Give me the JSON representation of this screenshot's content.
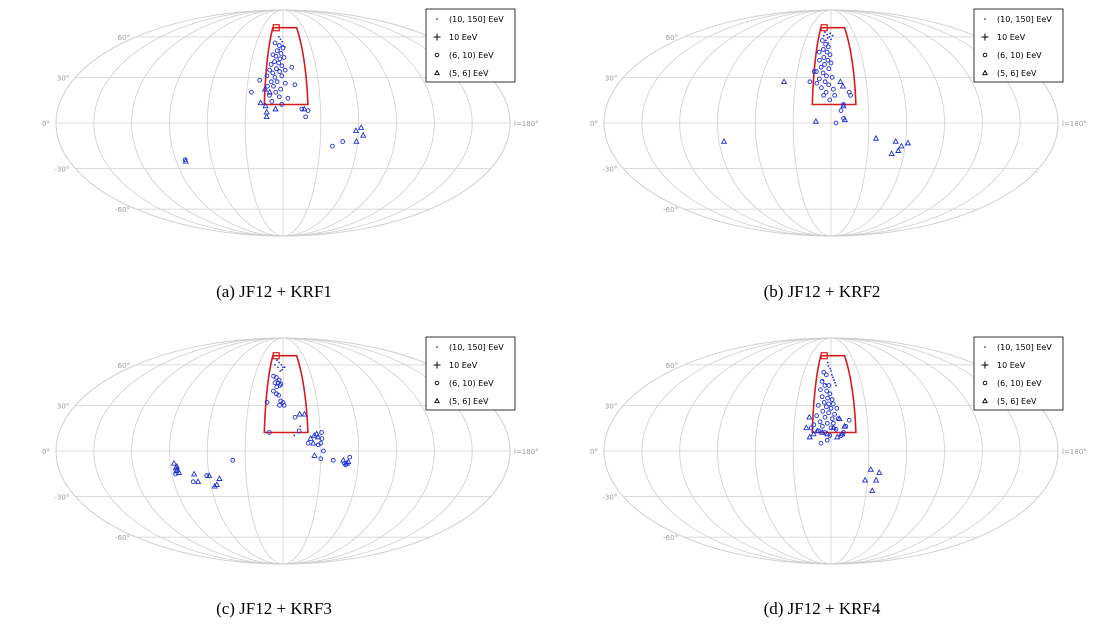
{
  "shared": {
    "lat_labels": [
      "60°",
      "30°",
      "0°",
      "-30°",
      "-60°"
    ],
    "lon_label": "l=180°",
    "legend": [
      {
        "label": "(10, 150] EeV",
        "marker": "dot"
      },
      {
        "label": "10 EeV",
        "marker": "plus"
      },
      {
        "label": "(6, 10) EeV",
        "marker": "circle"
      },
      {
        "label": "(5, 6] EeV",
        "marker": "triangle"
      }
    ],
    "colors": {
      "points": "#1f2fd6",
      "region": "#d81b1b",
      "grid": "#cfcfcf",
      "tick": "#9a9a9a"
    }
  },
  "chart_data": [
    {
      "type": "scatter",
      "projection": "mollweide",
      "caption": "(a) JF12 + KRF1",
      "source_marker": {
        "l": -10,
        "b": 68
      },
      "region": {
        "l_min": -15,
        "l_max": 20,
        "b_min": 12,
        "b_max": 68
      },
      "series": [
        {
          "marker": "dot",
          "points": [
            [
              -5,
              60
            ],
            [
              -3,
              58
            ],
            [
              -1,
              56
            ],
            [
              0,
              53
            ],
            [
              -4,
              50
            ],
            [
              2,
              52
            ]
          ]
        },
        {
          "marker": "circle",
          "points": [
            [
              -9,
              55
            ],
            [
              -4,
              53
            ],
            [
              0,
              51
            ],
            [
              -6,
              49
            ],
            [
              -2,
              47
            ],
            [
              -10,
              46
            ],
            [
              -7,
              45
            ],
            [
              -3,
              43
            ],
            [
              1,
              44
            ],
            [
              -8,
              41
            ],
            [
              -4,
              40
            ],
            [
              -11,
              39
            ],
            [
              -1,
              38
            ],
            [
              -6,
              36
            ],
            [
              -12,
              35
            ],
            [
              -9,
              33
            ],
            [
              -3,
              34
            ],
            [
              -14,
              31
            ],
            [
              -7,
              30
            ],
            [
              -1,
              31
            ],
            [
              -10,
              27
            ],
            [
              -5,
              27
            ],
            [
              2,
              26
            ],
            [
              -13,
              24
            ],
            [
              -8,
              24
            ],
            [
              -2,
              22
            ],
            [
              -6,
              20
            ],
            [
              -11,
              18
            ],
            [
              -3,
              17
            ],
            [
              4,
              16
            ],
            [
              -9,
              14
            ],
            [
              -1,
              12
            ],
            [
              2,
              35
            ],
            [
              8,
              37
            ],
            [
              10,
              25
            ],
            [
              -20,
              28
            ],
            [
              -26,
              20
            ],
            [
              15,
              9
            ],
            [
              20,
              8
            ],
            [
              18,
              4
            ],
            [
              40,
              -15
            ],
            [
              48,
              -12
            ],
            [
              -82,
              -24
            ]
          ]
        },
        {
          "marker": "triangle",
          "points": [
            [
              -18,
              13
            ],
            [
              -14,
              11
            ],
            [
              -13,
              7
            ],
            [
              -6,
              9
            ],
            [
              -15,
              22
            ],
            [
              -11,
              20
            ],
            [
              17,
              9
            ],
            [
              -13,
              4
            ],
            [
              58,
              -5
            ],
            [
              62,
              -3
            ],
            [
              64,
              -8
            ],
            [
              59,
              -12
            ],
            [
              -82,
              -25
            ]
          ]
        }
      ]
    },
    {
      "type": "scatter",
      "projection": "mollweide",
      "caption": "(b) JF12 + KRF2",
      "source_marker": {
        "l": -10,
        "b": 68
      },
      "region": {
        "l_min": -15,
        "l_max": 20,
        "b_min": 12,
        "b_max": 68
      },
      "series": [
        {
          "marker": "dot",
          "points": [
            [
              -8,
              64
            ],
            [
              -5,
              62
            ],
            [
              -2,
              60
            ],
            [
              0,
              58
            ],
            [
              -6,
              57
            ],
            [
              -3,
              55
            ],
            [
              -9,
              61
            ],
            [
              -1,
              63
            ],
            [
              2,
              61
            ],
            [
              -4,
              59
            ]
          ]
        },
        {
          "marker": "circle",
          "points": [
            [
              -10,
              57
            ],
            [
              -6,
              54
            ],
            [
              -3,
              52
            ],
            [
              -8,
              50
            ],
            [
              -12,
              48
            ],
            [
              -4,
              48
            ],
            [
              -1,
              46
            ],
            [
              -7,
              44
            ],
            [
              -11,
              42
            ],
            [
              -3,
              42
            ],
            [
              0,
              40
            ],
            [
              -6,
              39
            ],
            [
              -9,
              37
            ],
            [
              -2,
              36
            ],
            [
              -13,
              34
            ],
            [
              -7,
              33
            ],
            [
              -4,
              31
            ],
            [
              1,
              30
            ],
            [
              -10,
              29
            ],
            [
              -5,
              27
            ],
            [
              -12,
              26
            ],
            [
              -2,
              25
            ],
            [
              -8,
              23
            ],
            [
              2,
              22
            ],
            [
              -4,
              20
            ],
            [
              -6,
              18
            ],
            [
              3,
              18
            ],
            [
              -1,
              15
            ],
            [
              -15,
              34
            ],
            [
              -18,
              27
            ],
            [
              15,
              20
            ],
            [
              16,
              18
            ],
            [
              10,
              12
            ],
            [
              8,
              8
            ],
            [
              10,
              3
            ],
            [
              4,
              0
            ]
          ]
        },
        {
          "marker": "triangle",
          "points": [
            [
              8,
              27
            ],
            [
              10,
              24
            ],
            [
              -40,
              27
            ],
            [
              -12,
              1
            ],
            [
              11,
              2
            ],
            [
              10,
              11
            ],
            [
              -86,
              -12
            ],
            [
              36,
              -10
            ],
            [
              52,
              -12
            ],
            [
              57,
              -15
            ],
            [
              55,
              -18
            ],
            [
              50,
              -20
            ],
            [
              62,
              -13
            ]
          ]
        }
      ]
    },
    {
      "type": "scatter",
      "projection": "mollweide",
      "caption": "(c) JF12 + KRF3",
      "source_marker": {
        "l": -10,
        "b": 68
      },
      "region": {
        "l_min": -15,
        "l_max": 20,
        "b_min": 12,
        "b_max": 68
      },
      "series": [
        {
          "marker": "dot",
          "points": [
            [
              -8,
              64
            ],
            [
              -5,
              62
            ],
            [
              -2,
              60
            ],
            [
              0,
              58
            ],
            [
              -6,
              58
            ],
            [
              -3,
              55
            ],
            [
              -10,
              60
            ],
            [
              2,
              58
            ],
            [
              -1,
              56
            ],
            [
              14,
              16
            ],
            [
              9,
              10
            ]
          ]
        },
        {
          "marker": "circle",
          "points": [
            [
              -10,
              51
            ],
            [
              -7,
              50
            ],
            [
              -4,
              48
            ],
            [
              -8,
              46
            ],
            [
              -5,
              46
            ],
            [
              -2,
              45
            ],
            [
              -6,
              43
            ],
            [
              -3,
              44
            ],
            [
              -9,
              40
            ],
            [
              -6,
              38
            ],
            [
              -4,
              37
            ],
            [
              -2,
              33
            ],
            [
              0,
              32
            ],
            [
              -3,
              30
            ],
            [
              1,
              30
            ],
            [
              -14,
              32
            ],
            [
              -11,
              12
            ],
            [
              10,
              22
            ],
            [
              13,
              13
            ],
            [
              20,
              5
            ],
            [
              28,
              4
            ],
            [
              31,
              12
            ],
            [
              31,
              8
            ],
            [
              30,
              5
            ],
            [
              32,
              0
            ],
            [
              30,
              -5
            ],
            [
              40,
              -6
            ],
            [
              49,
              -8
            ],
            [
              50,
              -9
            ],
            [
              53,
              -4
            ],
            [
              -40,
              -6
            ],
            [
              -62,
              -16
            ],
            [
              -74,
              -20
            ],
            [
              -87,
              -15
            ]
          ]
        },
        {
          "marker": "triangle",
          "points": [
            [
              14,
              24
            ],
            [
              18,
              24
            ],
            [
              22,
              8
            ],
            [
              24,
              5
            ],
            [
              25,
              10
            ],
            [
              27,
              11
            ],
            [
              28,
              9
            ],
            [
              25,
              -3
            ],
            [
              48,
              -6
            ],
            [
              52,
              -7
            ],
            [
              51,
              -8
            ],
            [
              -87,
              -8
            ],
            [
              -86,
              -11
            ],
            [
              -85,
              -12
            ],
            [
              -84,
              -14
            ],
            [
              -86,
              -13
            ],
            [
              -85,
              -10
            ],
            [
              -72,
              -15
            ],
            [
              -70,
              -20
            ],
            [
              -60,
              -16
            ],
            [
              -52,
              -18
            ],
            [
              -55,
              -22
            ],
            [
              -57,
              -23
            ]
          ]
        }
      ]
    },
    {
      "type": "scatter",
      "projection": "mollweide",
      "caption": "(d) JF12 + KRF4",
      "source_marker": {
        "l": -10,
        "b": 68
      },
      "region": {
        "l_min": -15,
        "l_max": 20,
        "b_min": 12,
        "b_max": 68
      },
      "series": [
        {
          "marker": "dot",
          "points": [
            [
              -4,
              62
            ],
            [
              -3,
              59
            ],
            [
              -1,
              57
            ],
            [
              0,
              55
            ],
            [
              1,
              52
            ],
            [
              2,
              50
            ],
            [
              3,
              48
            ],
            [
              4,
              46
            ],
            [
              5,
              44
            ],
            [
              -8,
              48
            ],
            [
              -5,
              45
            ]
          ]
        },
        {
          "marker": "circle",
          "points": [
            [
              -8,
              54
            ],
            [
              -5,
              52
            ],
            [
              -9,
              47
            ],
            [
              -6,
              44
            ],
            [
              -2,
              44
            ],
            [
              -10,
              41
            ],
            [
              -4,
              40
            ],
            [
              -1,
              38
            ],
            [
              -8,
              36
            ],
            [
              -3,
              35
            ],
            [
              1,
              34
            ],
            [
              -6,
              32
            ],
            [
              -2,
              31
            ],
            [
              2,
              31
            ],
            [
              -11,
              30
            ],
            [
              -4,
              29
            ],
            [
              0,
              28
            ],
            [
              5,
              28
            ],
            [
              -7,
              26
            ],
            [
              -2,
              25
            ],
            [
              3,
              24
            ],
            [
              -12,
              23
            ],
            [
              -5,
              22
            ],
            [
              1,
              21
            ],
            [
              6,
              21
            ],
            [
              -9,
              19
            ],
            [
              -3,
              18
            ],
            [
              2,
              18
            ],
            [
              -14,
              17
            ],
            [
              -7,
              16
            ],
            [
              0,
              15
            ],
            [
              4,
              14
            ],
            [
              -16,
              15
            ],
            [
              -10,
              13
            ],
            [
              -5,
              12
            ],
            [
              -1,
              10
            ],
            [
              8,
              10
            ],
            [
              10,
              12
            ],
            [
              12,
              16
            ],
            [
              15,
              20
            ],
            [
              -3,
              7
            ],
            [
              -8,
              5
            ]
          ]
        },
        {
          "marker": "triangle",
          "points": [
            [
              -18,
              22
            ],
            [
              -20,
              15
            ],
            [
              -17,
              9
            ],
            [
              -14,
              11
            ],
            [
              -11,
              13
            ],
            [
              -7,
              12
            ],
            [
              -3,
              11
            ],
            [
              2,
              15
            ],
            [
              7,
              21
            ],
            [
              11,
              16
            ],
            [
              9,
              11
            ],
            [
              5,
              9
            ],
            [
              32,
              -12
            ],
            [
              39,
              -14
            ],
            [
              37,
              -19
            ],
            [
              28,
              -19
            ],
            [
              35,
              -26
            ]
          ]
        }
      ]
    }
  ]
}
